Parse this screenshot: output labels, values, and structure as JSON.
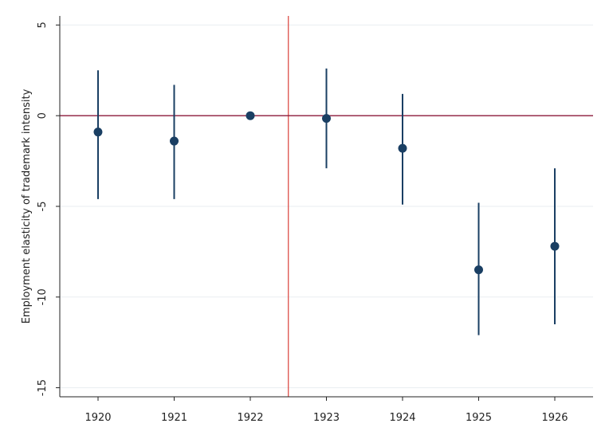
{
  "chart_data": {
    "type": "scatter",
    "subtype": "coefficient-plot-with-confidence-intervals",
    "title": "",
    "xlabel": "",
    "ylabel": "Employment elasticity of trademark intensity",
    "x": [
      "1920",
      "1921",
      "1922",
      "1923",
      "1924",
      "1925",
      "1926"
    ],
    "estimate": [
      -0.9,
      -1.4,
      0.0,
      -0.15,
      -1.8,
      -8.5,
      -7.2
    ],
    "ci_low": [
      -4.6,
      -4.6,
      0.0,
      -2.9,
      -4.9,
      -12.1,
      -11.5
    ],
    "ci_high": [
      2.5,
      1.7,
      0.0,
      2.6,
      1.2,
      -4.8,
      -2.9
    ],
    "ylim": [
      -15.5,
      5.5
    ],
    "yticks": [
      5,
      0,
      -5,
      -10,
      -15
    ],
    "yticklabels": [
      "5",
      "0",
      "-5",
      "-10",
      "-15"
    ],
    "reference_hline": 0,
    "reference_vline_between": [
      "1922",
      "1923"
    ],
    "grid": "horizontal",
    "legend": "none",
    "colors": {
      "marker": "#1a3f63",
      "errorbar": "#1a3f63",
      "hline": "#8b1a3a",
      "vline": "#d9403a",
      "grid": "#eaeef1",
      "axis": "#222222"
    }
  }
}
